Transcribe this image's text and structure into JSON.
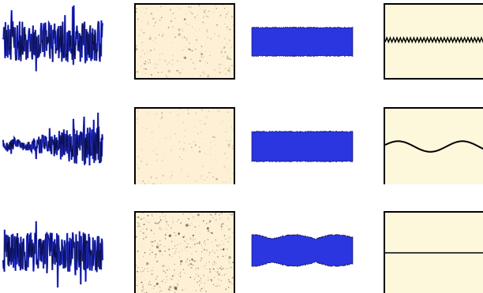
{
  "colors": {
    "waveform_fill": "#2b35e0",
    "waveform_edge": "#0a0f4a",
    "noise_background": "#fdf0d5",
    "noise_speckle": "#3a3020",
    "profile_background": "#fdf8dc",
    "frame": "#000000"
  },
  "rows": [
    {
      "name": "row-1",
      "signal": {
        "kind": "noise",
        "envelope": "uniform",
        "amplitude": 1.0
      },
      "speckle": {
        "density": "sparse",
        "darkness": 0.55
      },
      "band": {
        "kind": "solid-band"
      },
      "profile": {
        "kind": "sawtooth-ripple",
        "cycles": 30,
        "amplitude": 0.06
      }
    },
    {
      "name": "row-2",
      "signal": {
        "kind": "noise",
        "envelope": "growing",
        "amplitude": 1.0
      },
      "speckle": {
        "density": "faint",
        "darkness": 0.35
      },
      "band": {
        "kind": "solid-band"
      },
      "profile": {
        "kind": "slow-wave",
        "cycles": 1.6,
        "amplitude": 0.07
      }
    },
    {
      "name": "row-3",
      "signal": {
        "kind": "noise",
        "envelope": "uniform",
        "amplitude": 0.95
      },
      "speckle": {
        "density": "dense",
        "darkness": 0.7
      },
      "band": {
        "kind": "beating-band"
      },
      "profile": {
        "kind": "flat-line",
        "cycles": 0,
        "amplitude": 0.0
      }
    }
  ]
}
